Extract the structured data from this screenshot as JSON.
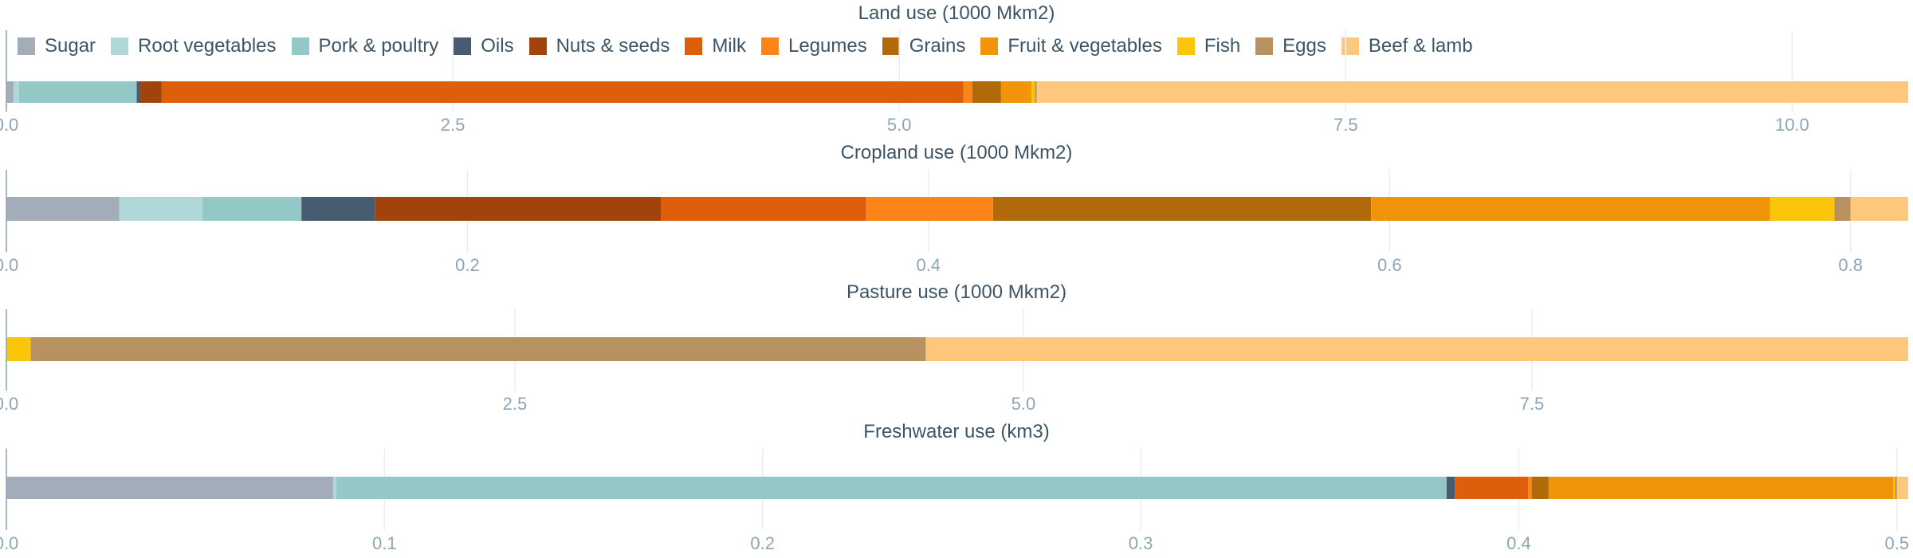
{
  "chart_data": [
    {
      "type": "bar",
      "orientation": "horizontal",
      "stacked": true,
      "title": "Land use (1000 Mkm2)",
      "xlim": [
        0,
        10.65
      ],
      "ticks": [
        "0.0",
        "2.5",
        "5.0",
        "7.5",
        "10.0"
      ],
      "tick_values": [
        0,
        2.5,
        5.0,
        7.5,
        10.0
      ],
      "grid": true,
      "series": [
        {
          "name": "Sugar",
          "value": 0.04
        },
        {
          "name": "Root vegetables",
          "value": 0.03
        },
        {
          "name": "Pork & poultry",
          "value": 0.66
        },
        {
          "name": "Oils",
          "value": 0.02
        },
        {
          "name": "Nuts & seeds",
          "value": 0.12
        },
        {
          "name": "Milk",
          "value": 4.49
        },
        {
          "name": "Legumes",
          "value": 0.05
        },
        {
          "name": "Grains",
          "value": 0.16
        },
        {
          "name": "Fruit & vegetables",
          "value": 0.17
        },
        {
          "name": "Fish",
          "value": 0.02
        },
        {
          "name": "Eggs",
          "value": 0.01
        },
        {
          "name": "Beef & lamb",
          "value": 4.88
        }
      ]
    },
    {
      "type": "bar",
      "orientation": "horizontal",
      "stacked": true,
      "title": "Cropland use (1000 Mkm2)",
      "xlim": [
        0,
        0.825
      ],
      "ticks": [
        "0.0",
        "0.2",
        "0.4",
        "0.6",
        "0.8"
      ],
      "tick_values": [
        0,
        0.2,
        0.4,
        0.6,
        0.8
      ],
      "grid": true,
      "series": [
        {
          "name": "Sugar",
          "value": 0.049
        },
        {
          "name": "Root vegetables",
          "value": 0.036
        },
        {
          "name": "Pork & poultry",
          "value": 0.043
        },
        {
          "name": "Oils",
          "value": 0.032
        },
        {
          "name": "Nuts & seeds",
          "value": 0.124
        },
        {
          "name": "Milk",
          "value": 0.089
        },
        {
          "name": "Legumes",
          "value": 0.055
        },
        {
          "name": "Grains",
          "value": 0.164
        },
        {
          "name": "Fruit & vegetables",
          "value": 0.173
        },
        {
          "name": "Fish",
          "value": 0.028
        },
        {
          "name": "Eggs",
          "value": 0.007
        },
        {
          "name": "Beef & lamb",
          "value": 0.025
        }
      ]
    },
    {
      "type": "bar",
      "orientation": "horizontal",
      "stacked": true,
      "title": "Pasture use (1000 Mkm2)",
      "xlim": [
        0,
        9.35
      ],
      "ticks": [
        "0.0",
        "2.5",
        "5.0",
        "7.5"
      ],
      "tick_values": [
        0,
        2.5,
        5.0,
        7.5
      ],
      "grid": true,
      "series": [
        {
          "name": "Fish",
          "value": 0.12
        },
        {
          "name": "Eggs",
          "value": 4.4
        },
        {
          "name": "Beef & lamb",
          "value": 4.83
        }
      ]
    },
    {
      "type": "bar",
      "orientation": "horizontal",
      "stacked": true,
      "title": "Freshwater use (km3)",
      "xlim": [
        0,
        0.503
      ],
      "ticks": [
        "0.0",
        "0.1",
        "0.2",
        "0.3",
        "0.4",
        "0.5"
      ],
      "tick_values": [
        0,
        0.1,
        0.2,
        0.3,
        0.4,
        0.5
      ],
      "grid": true,
      "series": [
        {
          "name": "Sugar",
          "value": 0.0865
        },
        {
          "name": "Root vegetables",
          "value": 0.0008
        },
        {
          "name": "Pork & poultry",
          "value": 0.2936
        },
        {
          "name": "Oils",
          "value": 0.0022
        },
        {
          "name": "Milk",
          "value": 0.0194
        },
        {
          "name": "Legumes",
          "value": 0.001
        },
        {
          "name": "Grains",
          "value": 0.0044
        },
        {
          "name": "Fruit & vegetables",
          "value": 0.0911
        },
        {
          "name": "Fish",
          "value": 0.0005
        },
        {
          "name": "Eggs",
          "value": 0.0005
        },
        {
          "name": "Beef & lamb",
          "value": 0.003
        }
      ]
    }
  ],
  "legend": [
    {
      "name": "Sugar",
      "color": "#a3adba"
    },
    {
      "name": "Root vegetables",
      "color": "#b1d8d8"
    },
    {
      "name": "Pork & poultry",
      "color": "#93c8c7"
    },
    {
      "name": "Oils",
      "color": "#475c71"
    },
    {
      "name": "Nuts & seeds",
      "color": "#a0440c"
    },
    {
      "name": "Milk",
      "color": "#de5e0c"
    },
    {
      "name": "Legumes",
      "color": "#fb8519"
    },
    {
      "name": "Grains",
      "color": "#b06a09"
    },
    {
      "name": "Fruit & vegetables",
      "color": "#f29409"
    },
    {
      "name": "Fish",
      "color": "#fbc50a"
    },
    {
      "name": "Eggs",
      "color": "#b89160"
    },
    {
      "name": "Beef & lamb",
      "color": "#fdc87c"
    }
  ],
  "colors": {
    "axis": "#8da6b5",
    "grid": "#e8edf1",
    "title": "#3d5466",
    "tick_label": "#8da6b5"
  }
}
